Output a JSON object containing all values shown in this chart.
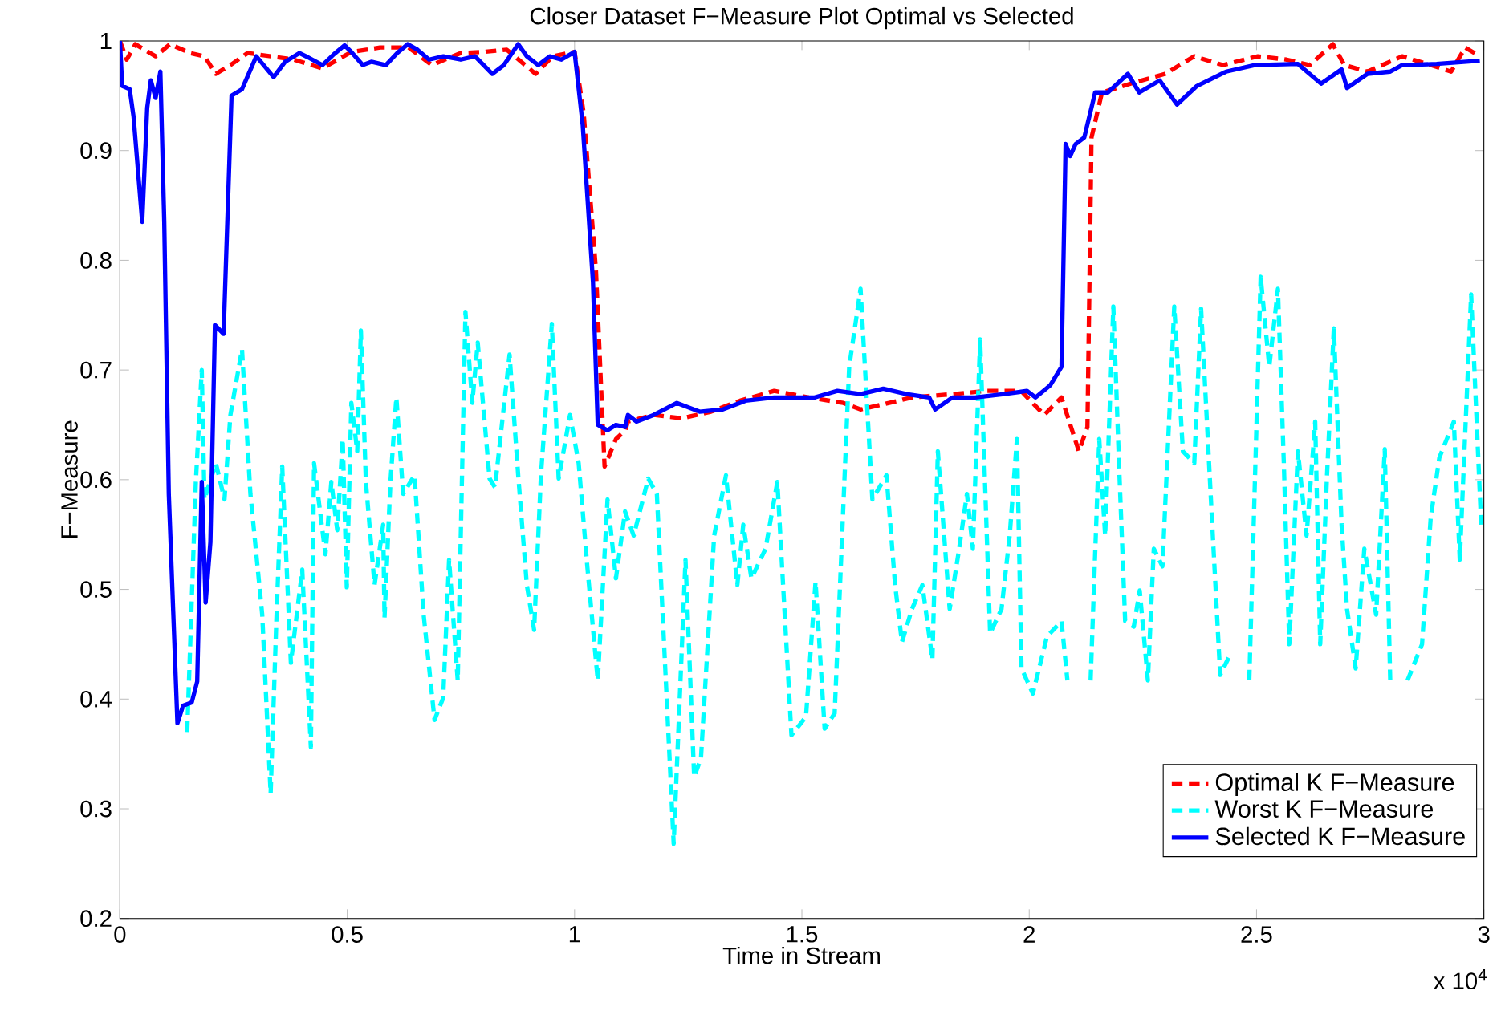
{
  "chart_data": {
    "type": "line",
    "title": "Closer Dataset F−Measure Plot Optimal vs Selected",
    "xlabel": "Time in Stream",
    "ylabel": "F−Measure",
    "xlim": [
      0,
      3
    ],
    "ylim": [
      0.2,
      1
    ],
    "xticks": [
      0,
      0.5,
      1,
      1.5,
      2,
      2.5,
      3
    ],
    "yticks": [
      0.2,
      0.3,
      0.4,
      0.5,
      0.6,
      0.7,
      0.8,
      0.9,
      1
    ],
    "annotations": [
      "x 10$^{4}$"
    ],
    "legend": "bottom right",
    "marker": "none",
    "grid": false,
    "series": [
      {
        "name": "Optimal K F−Measure",
        "color": "#ff0000",
        "line_style": "dashed",
        "x": [
          0,
          0.015,
          0.034,
          0.0785,
          0.11,
          0.1545,
          0.186,
          0.211,
          0.243,
          0.281,
          0.332,
          0.382,
          0.4455,
          0.509,
          0.572,
          0.635,
          0.686,
          0.75,
          0.8,
          0.851,
          0.914,
          0.952,
          1.0,
          1.02,
          1.047,
          1.066,
          1.091,
          1.1115,
          1.1173,
          1.174,
          1.237,
          1.3,
          1.364,
          1.439,
          1.515,
          1.591,
          1.629,
          1.692,
          1.742,
          1.831,
          1.907,
          1.982,
          2.033,
          2.071,
          2.109,
          2.128,
          2.137,
          2.16,
          2.223,
          2.299,
          2.363,
          2.426,
          2.503,
          2.566,
          2.617,
          2.668,
          2.693,
          2.744,
          2.82,
          2.883,
          2.928,
          2.959,
          2.991
        ],
        "values": [
          1.0,
          0.983,
          0.997,
          0.986,
          0.997,
          0.989,
          0.986,
          0.97,
          0.978,
          0.989,
          0.986,
          0.983,
          0.975,
          0.99,
          0.994,
          0.994,
          0.978,
          0.989,
          0.99,
          0.992,
          0.97,
          0.986,
          0.99,
          0.934,
          0.791,
          0.612,
          0.637,
          0.645,
          0.653,
          0.659,
          0.656,
          0.662,
          0.672,
          0.681,
          0.675,
          0.67,
          0.664,
          0.67,
          0.675,
          0.678,
          0.681,
          0.681,
          0.659,
          0.675,
          0.626,
          0.648,
          0.912,
          0.953,
          0.961,
          0.97,
          0.986,
          0.978,
          0.986,
          0.983,
          0.978,
          0.997,
          0.978,
          0.972,
          0.986,
          0.978,
          0.972,
          0.994,
          0.986
        ]
      },
      {
        "name": "Worst K F−Measure",
        "color": "#00ffff",
        "line_style": "dashed",
        "x": [
          0.148,
          0.167,
          0.18,
          0.186,
          0.211,
          0.23,
          0.243,
          0.2685,
          0.287,
          0.313,
          0.3315,
          0.344,
          0.357,
          0.376,
          0.401,
          0.42,
          0.427,
          0.452,
          0.465,
          0.478,
          0.49,
          0.499,
          0.509,
          0.522,
          0.53,
          0.541,
          0.56,
          0.579,
          0.582,
          0.595,
          0.608,
          0.623,
          0.648,
          0.668,
          0.692,
          0.711,
          0.724,
          0.743,
          0.76,
          0.775,
          0.787,
          0.813,
          0.825,
          0.857,
          0.876,
          0.895,
          0.911,
          0.926,
          0.95,
          0.965,
          0.99,
          1.009,
          1.028,
          1.051,
          1.0725,
          1.091,
          1.111,
          1.13,
          1.162,
          1.181,
          1.218,
          1.244,
          1.263,
          1.278,
          1.307,
          1.333,
          1.358,
          1.371,
          1.389,
          1.42,
          1.446,
          1.477,
          1.509,
          1.53,
          1.55,
          1.572,
          1.604,
          1.629,
          1.655,
          1.686,
          1.705,
          1.72,
          1.742,
          1.765,
          1.787,
          1.799,
          1.825,
          1.844,
          1.863,
          1.876,
          1.892,
          1.914,
          1.939,
          1.957,
          1.973,
          1.983,
          2.008,
          2.039,
          2.071,
          2.084,
          2.11,
          2.135,
          2.154,
          2.167,
          2.185,
          2.198,
          2.211,
          2.23,
          2.243,
          2.261,
          2.274,
          2.293,
          2.319,
          2.338,
          2.363,
          2.378,
          2.401,
          2.42,
          2.439,
          2.46,
          2.484,
          2.509,
          2.528,
          2.547,
          2.56,
          2.572,
          2.591,
          2.61,
          2.629,
          2.64,
          2.655,
          2.67,
          2.687,
          2.699,
          2.718,
          2.737,
          2.763,
          2.782,
          2.794,
          2.813,
          2.832,
          2.864,
          2.883,
          2.902,
          2.934,
          2.947,
          2.972,
          2.994
        ],
        "values": [
          0.37,
          0.598,
          0.7,
          0.582,
          0.615,
          0.582,
          0.659,
          0.719,
          0.587,
          0.477,
          0.314,
          0.471,
          0.612,
          0.433,
          0.518,
          0.356,
          0.615,
          0.532,
          0.598,
          0.554,
          0.637,
          0.502,
          0.67,
          0.626,
          0.736,
          0.598,
          0.504,
          0.559,
          0.474,
          0.598,
          0.675,
          0.587,
          0.604,
          0.477,
          0.381,
          0.401,
          0.527,
          0.417,
          0.753,
          0.67,
          0.725,
          0.601,
          0.593,
          0.714,
          0.604,
          0.504,
          0.463,
          0.604,
          0.742,
          0.601,
          0.659,
          0.615,
          0.521,
          0.417,
          0.582,
          0.51,
          0.571,
          0.549,
          0.601,
          0.587,
          0.268,
          0.527,
          0.329,
          0.346,
          0.549,
          0.604,
          0.504,
          0.559,
          0.51,
          0.537,
          0.598,
          0.367,
          0.384,
          0.507,
          0.373,
          0.387,
          0.703,
          0.774,
          0.582,
          0.604,
          0.504,
          0.452,
          0.482,
          0.504,
          0.436,
          0.626,
          0.482,
          0.532,
          0.587,
          0.537,
          0.728,
          0.46,
          0.482,
          0.549,
          0.637,
          0.428,
          0.405,
          0.457,
          0.471,
          0.417,
          null,
          0.417,
          0.637,
          0.549,
          0.758,
          0.609,
          0.471,
          0.466,
          0.499,
          0.417,
          0.537,
          0.521,
          0.758,
          0.626,
          0.615,
          0.756,
          0.571,
          0.422,
          0.438,
          null,
          0.417,
          0.785,
          0.703,
          0.774,
          0.615,
          0.45,
          0.626,
          0.549,
          0.653,
          0.45,
          0.604,
          0.738,
          0.559,
          0.482,
          0.428,
          0.537,
          0.477,
          0.628,
          0.417,
          null,
          0.417,
          0.45,
          0.565,
          0.62,
          0.653,
          0.527,
          0.769,
          0.559
        ]
      },
      {
        "name": "Selected K F−Measure",
        "color": "#0000ff",
        "line_style": "solid",
        "x": [
          0,
          0.005,
          0.0215,
          0.03,
          0.049,
          0.06,
          0.068,
          0.0785,
          0.089,
          0.0975,
          0.1075,
          0.1265,
          0.139,
          0.158,
          0.17,
          0.18,
          0.1885,
          0.199,
          0.209,
          0.228,
          0.2455,
          0.2685,
          0.3,
          0.338,
          0.3635,
          0.395,
          0.414,
          0.4455,
          0.471,
          0.494,
          0.509,
          0.534,
          0.553,
          0.585,
          0.61,
          0.633,
          0.6545,
          0.68,
          0.7115,
          0.7495,
          0.781,
          0.8,
          0.819,
          0.8445,
          0.876,
          0.895,
          0.92,
          0.9455,
          0.971,
          1.0,
          1.018,
          1.0405,
          1.051,
          1.0725,
          1.091,
          1.1115,
          1.1173,
          1.136,
          1.174,
          1.225,
          1.275,
          1.326,
          1.376,
          1.439,
          1.49,
          1.528,
          1.578,
          1.629,
          1.679,
          1.73,
          1.78,
          1.793,
          1.831,
          1.881,
          1.945,
          1.995,
          2.014,
          2.046,
          2.071,
          2.08,
          2.09,
          2.102,
          2.121,
          2.145,
          2.173,
          2.217,
          2.242,
          2.287,
          2.325,
          2.369,
          2.433,
          2.496,
          2.591,
          2.642,
          2.687,
          2.699,
          2.744,
          2.794,
          2.82,
          2.896,
          2.991
        ],
        "values": [
          1.0,
          0.959,
          0.956,
          0.931,
          0.835,
          0.939,
          0.964,
          0.948,
          0.972,
          0.835,
          0.587,
          0.378,
          0.394,
          0.397,
          0.416,
          0.598,
          0.488,
          0.543,
          0.741,
          0.733,
          0.95,
          0.956,
          0.986,
          0.967,
          0.981,
          0.989,
          0.985,
          0.978,
          0.988,
          0.996,
          0.99,
          0.978,
          0.981,
          0.978,
          0.989,
          0.997,
          0.992,
          0.983,
          0.986,
          0.983,
          0.986,
          0.978,
          0.97,
          0.978,
          0.997,
          0.986,
          0.978,
          0.986,
          0.983,
          0.99,
          0.923,
          0.78,
          0.65,
          0.645,
          0.65,
          0.648,
          0.659,
          0.653,
          0.659,
          0.67,
          0.662,
          0.664,
          0.672,
          0.675,
          0.675,
          0.675,
          0.681,
          0.678,
          0.683,
          0.678,
          0.675,
          0.664,
          0.675,
          0.675,
          0.678,
          0.681,
          0.675,
          0.686,
          0.703,
          0.906,
          0.895,
          0.906,
          0.912,
          0.953,
          0.953,
          0.97,
          0.953,
          0.964,
          0.942,
          0.959,
          0.972,
          0.978,
          0.979,
          0.961,
          0.974,
          0.957,
          0.97,
          0.972,
          0.978,
          0.979,
          0.982
        ]
      }
    ]
  }
}
